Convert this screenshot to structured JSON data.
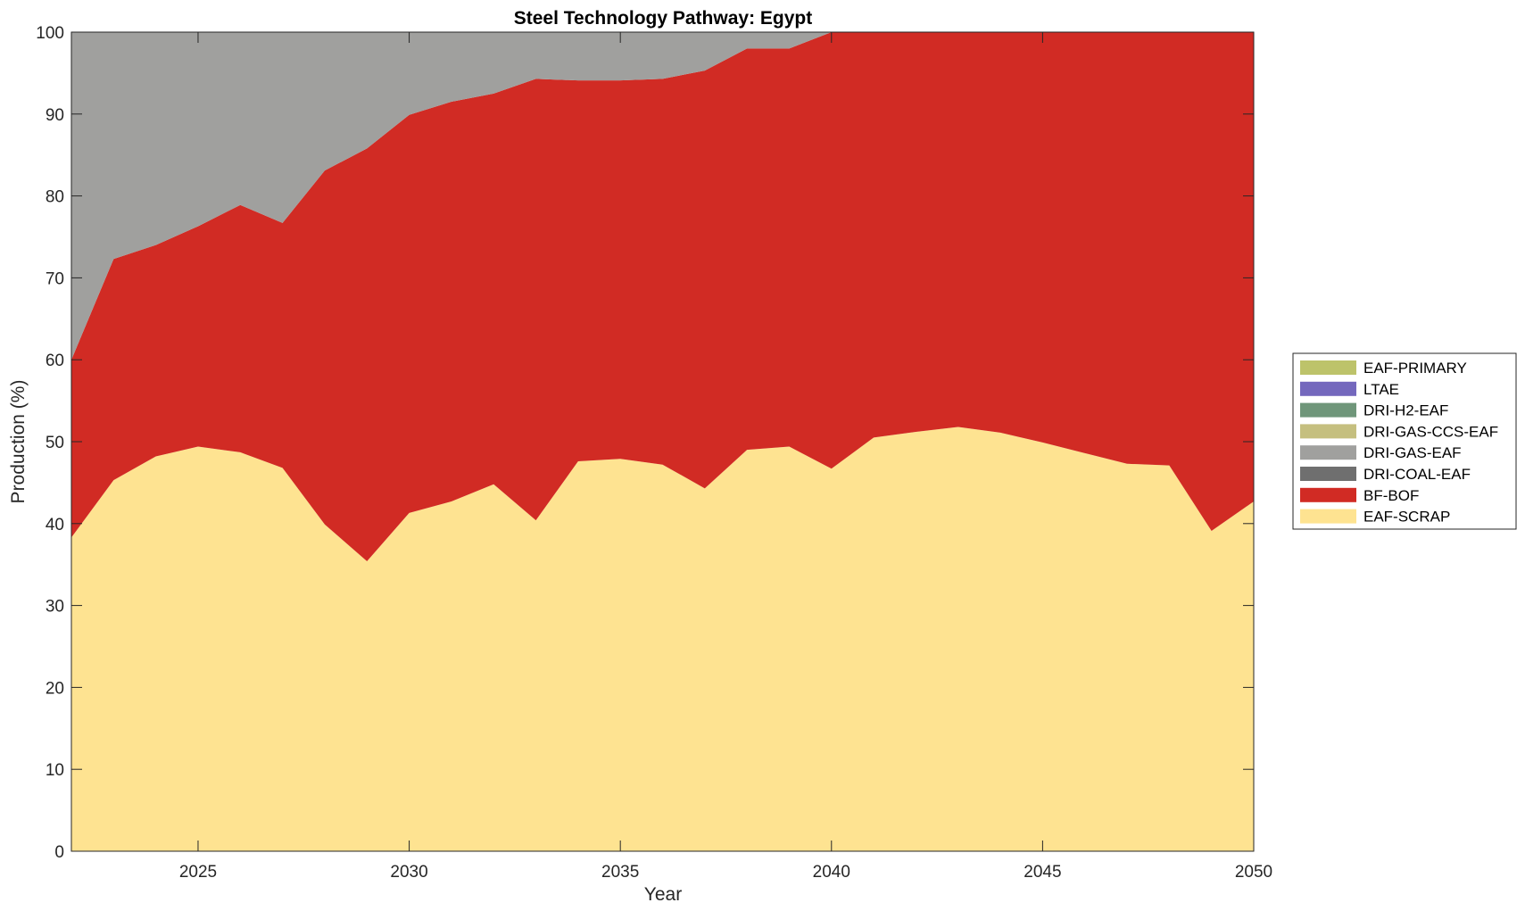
{
  "chart_data": {
    "type": "area",
    "stacked": true,
    "title": "Steel Technology Pathway: Egypt",
    "xlabel": "Year",
    "ylabel": "Production (%)",
    "xlim": [
      2022,
      2050
    ],
    "ylim": [
      0,
      100
    ],
    "xticks": [
      2025,
      2030,
      2035,
      2040,
      2045,
      2050
    ],
    "yticks": [
      0,
      10,
      20,
      30,
      40,
      50,
      60,
      70,
      80,
      90,
      100
    ],
    "grid": false,
    "legend_position": "right",
    "x": [
      2022,
      2023,
      2024,
      2025,
      2026,
      2027,
      2028,
      2029,
      2030,
      2031,
      2032,
      2033,
      2034,
      2035,
      2036,
      2037,
      2038,
      2039,
      2040,
      2041,
      2042,
      2043,
      2044,
      2045,
      2046,
      2047,
      2048,
      2049,
      2050
    ],
    "series": [
      {
        "name": "EAF-SCRAP",
        "color": "#FEE391",
        "values": [
          38.3,
          45.3,
          48.2,
          49.4,
          48.7,
          46.8,
          39.9,
          35.4,
          41.3,
          42.7,
          44.8,
          40.4,
          47.6,
          47.9,
          47.2,
          44.3,
          49.0,
          49.4,
          46.7,
          50.5,
          51.2,
          51.8,
          51.1,
          49.9,
          48.6,
          47.3,
          47.1,
          39.1,
          42.7
        ]
      },
      {
        "name": "BF-BOF",
        "color": "#D12B24",
        "values": [
          21.7,
          27.0,
          25.8,
          26.9,
          30.2,
          29.9,
          43.2,
          50.4,
          48.6,
          48.8,
          47.7,
          53.9,
          46.5,
          46.2,
          47.1,
          51.0,
          49.0,
          48.6,
          53.3,
          49.5,
          48.8,
          48.2,
          48.9,
          50.1,
          51.4,
          52.7,
          52.9,
          60.9,
          57.3
        ]
      },
      {
        "name": "DRI-COAL-EAF",
        "color": "#6F6F6F",
        "values": [
          0,
          0,
          0,
          0,
          0,
          0,
          0,
          0,
          0,
          0,
          0,
          0,
          0,
          0,
          0,
          0,
          0,
          0,
          0,
          0,
          0,
          0,
          0,
          0,
          0,
          0,
          0,
          0,
          0
        ]
      },
      {
        "name": "DRI-GAS-EAF",
        "color": "#A0A09E",
        "values": [
          40.0,
          27.7,
          26.0,
          23.7,
          21.1,
          23.3,
          16.9,
          14.2,
          10.1,
          8.5,
          7.5,
          5.7,
          5.9,
          5.9,
          5.7,
          4.7,
          2.0,
          2.0,
          0,
          0,
          0,
          0,
          0,
          0,
          0,
          0,
          0,
          0,
          0
        ]
      },
      {
        "name": "DRI-GAS-CCS-EAF",
        "color": "#C5BF7F",
        "values": [
          0,
          0,
          0,
          0,
          0,
          0,
          0,
          0,
          0,
          0,
          0,
          0,
          0,
          0,
          0,
          0,
          0,
          0,
          0,
          0,
          0,
          0,
          0,
          0,
          0,
          0,
          0,
          0,
          0
        ]
      },
      {
        "name": "DRI-H2-EAF",
        "color": "#6F967A",
        "values": [
          0,
          0,
          0,
          0,
          0,
          0,
          0,
          0,
          0,
          0,
          0,
          0,
          0,
          0,
          0,
          0,
          0,
          0,
          0,
          0,
          0,
          0,
          0,
          0,
          0,
          0,
          0,
          0,
          0
        ]
      },
      {
        "name": "LTAE",
        "color": "#7468BD",
        "values": [
          0,
          0,
          0,
          0,
          0,
          0,
          0,
          0,
          0,
          0,
          0,
          0,
          0,
          0,
          0,
          0,
          0,
          0,
          0,
          0,
          0,
          0,
          0,
          0,
          0,
          0,
          0,
          0,
          0
        ]
      },
      {
        "name": "EAF-PRIMARY",
        "color": "#BDC36A",
        "values": [
          0,
          0,
          0,
          0,
          0,
          0,
          0,
          0,
          0,
          0,
          0,
          0,
          0,
          0,
          0,
          0,
          0,
          0,
          0,
          0,
          0,
          0,
          0,
          0,
          0,
          0,
          0,
          0,
          0
        ]
      }
    ],
    "legend_order": [
      "EAF-PRIMARY",
      "LTAE",
      "DRI-H2-EAF",
      "DRI-GAS-CCS-EAF",
      "DRI-GAS-EAF",
      "DRI-COAL-EAF",
      "BF-BOF",
      "EAF-SCRAP"
    ]
  }
}
